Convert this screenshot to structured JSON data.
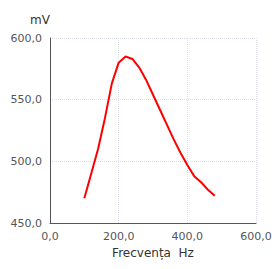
{
  "chart_data": {
    "type": "line",
    "xlabel": "Frecvența  Hz",
    "ylabel": "mV",
    "x": [
      100,
      120,
      140,
      160,
      180,
      200,
      220,
      240,
      260,
      280,
      300,
      320,
      340,
      360,
      380,
      400,
      420,
      440,
      460,
      480
    ],
    "values": [
      470,
      490,
      510,
      535,
      563,
      580,
      585,
      583,
      576,
      566,
      554,
      542,
      530,
      518,
      507,
      497,
      488,
      483,
      477,
      472
    ],
    "color": "#ff0000",
    "xlim": [
      0,
      600
    ],
    "ylim": [
      450,
      600
    ],
    "xticks": [
      {
        "value": 0,
        "label": "0,0"
      },
      {
        "value": 200,
        "label": "200,0"
      },
      {
        "value": 400,
        "label": "400,0"
      },
      {
        "value": 600,
        "label": "600,0"
      }
    ],
    "yticks": [
      {
        "value": 450,
        "label": "450,0"
      },
      {
        "value": 500,
        "label": "500,0"
      },
      {
        "value": 550,
        "label": "550,0"
      },
      {
        "value": 600,
        "label": "600,0"
      }
    ],
    "grid": true
  }
}
